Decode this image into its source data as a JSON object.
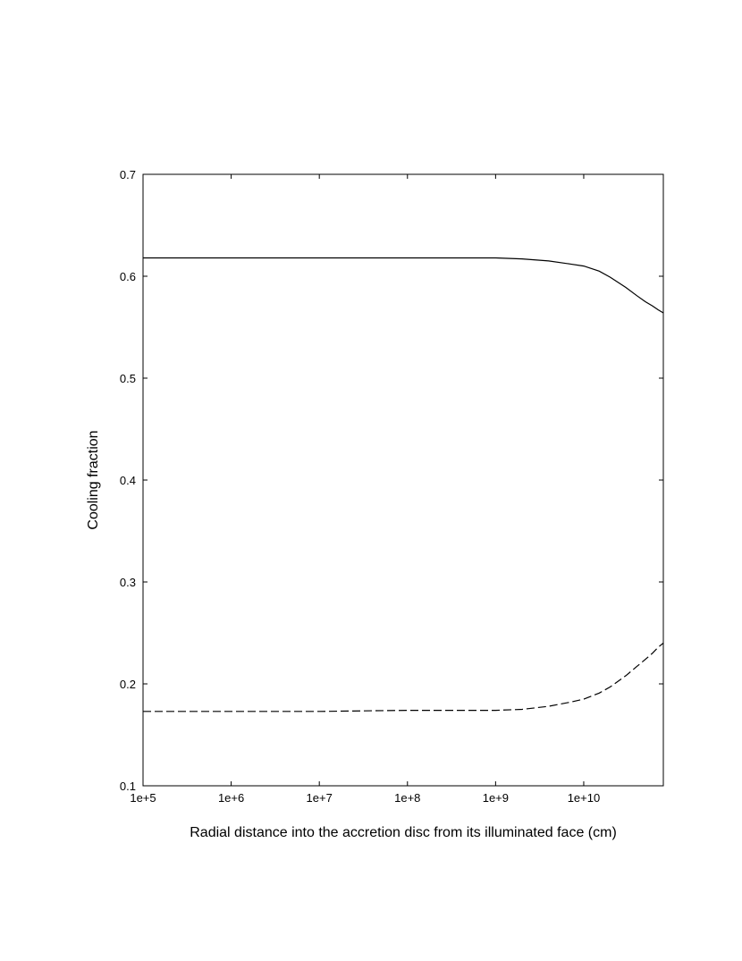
{
  "chart_data": {
    "type": "line",
    "title": "",
    "xlabel": "Radial distance into the accretion disc from its illuminated face (cm)",
    "ylabel": "Cooling fraction",
    "xscale": "log",
    "xlim": [
      100000,
      80000000000
    ],
    "ylim": [
      0.1,
      0.7
    ],
    "xticks": [
      100000,
      1000000,
      10000000,
      100000000,
      1000000000,
      10000000000
    ],
    "xtick_labels": [
      "1e+5",
      "1e+6",
      "1e+7",
      "1e+8",
      "1e+9",
      "1e+10"
    ],
    "yticks": [
      0.1,
      0.2,
      0.3,
      0.4,
      0.5,
      0.6,
      0.7
    ],
    "ytick_labels": [
      "0.1",
      "0.2",
      "0.3",
      "0.4",
      "0.5",
      "0.6",
      "0.7"
    ],
    "grid": false,
    "legend": "none",
    "series": [
      {
        "style": "solid",
        "color": "#000000",
        "x": [
          100000,
          1000000,
          10000000,
          100000000,
          1000000000,
          2000000000,
          4000000000,
          7000000000,
          10000000000,
          15000000000,
          20000000000,
          30000000000,
          40000000000,
          50000000000,
          60000000000,
          70000000000,
          80000000000
        ],
        "y": [
          0.618,
          0.618,
          0.618,
          0.618,
          0.618,
          0.617,
          0.615,
          0.612,
          0.61,
          0.605,
          0.599,
          0.589,
          0.581,
          0.575,
          0.571,
          0.567,
          0.564
        ]
      },
      {
        "style": "dashed",
        "color": "#000000",
        "x": [
          100000,
          1000000,
          10000000,
          100000000,
          1000000000,
          2000000000,
          4000000000,
          7000000000,
          10000000000,
          15000000000,
          20000000000,
          30000000000,
          40000000000,
          50000000000,
          60000000000,
          70000000000,
          80000000000
        ],
        "y": [
          0.173,
          0.173,
          0.173,
          0.174,
          0.174,
          0.175,
          0.178,
          0.182,
          0.185,
          0.191,
          0.197,
          0.208,
          0.217,
          0.224,
          0.23,
          0.236,
          0.24
        ]
      }
    ]
  }
}
